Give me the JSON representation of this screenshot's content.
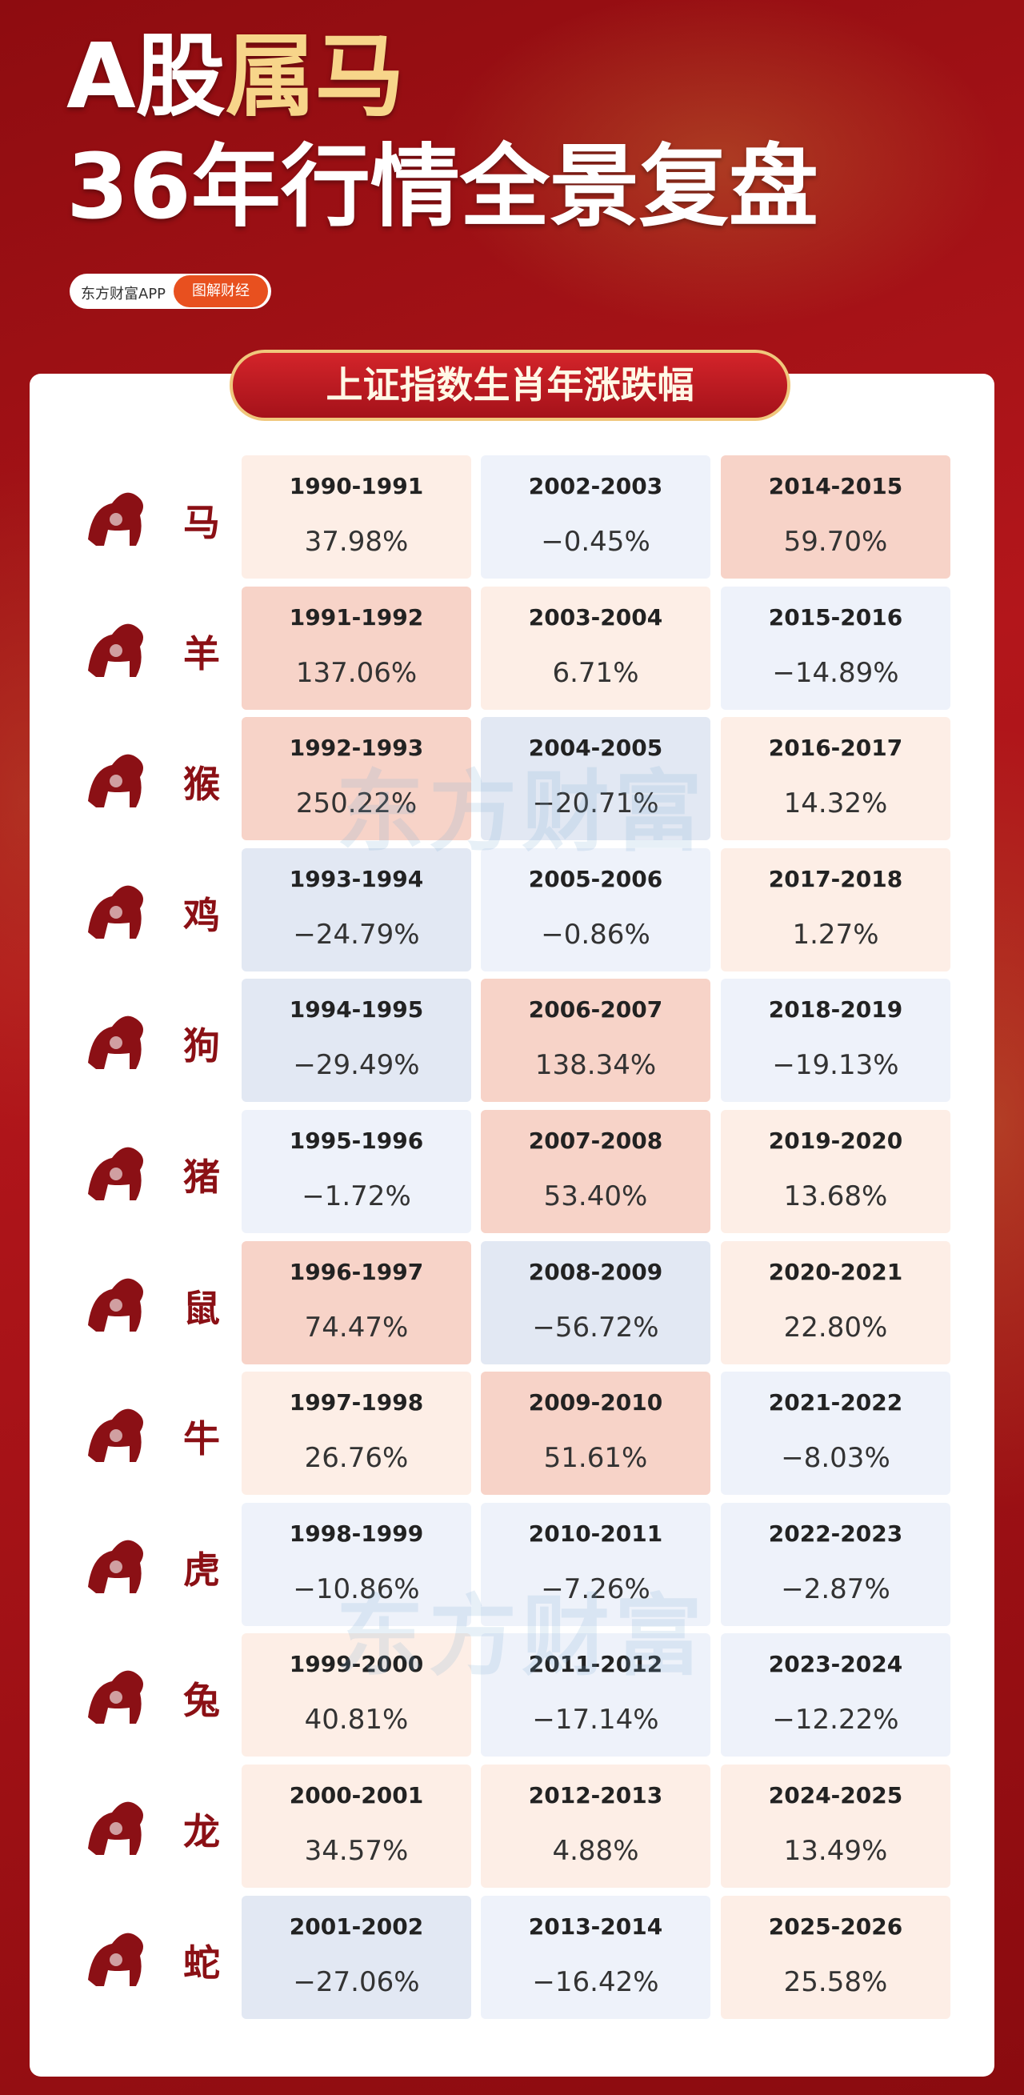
{
  "header": {
    "title_a": "A股",
    "title_b": "属马",
    "title_line2": "36年行情全景复盘",
    "badge_left": "东方财富APP",
    "badge_right": "图解财经"
  },
  "banner": "上证指数生肖年涨跌幅",
  "watermark": "东方财富",
  "table": {
    "rows": [
      {
        "zodiac": "马",
        "cells": [
          {
            "period": "1990-1991",
            "change": "37.98%"
          },
          {
            "period": "2002-2003",
            "change": "−0.45%"
          },
          {
            "period": "2014-2015",
            "change": "59.70%"
          }
        ]
      },
      {
        "zodiac": "羊",
        "cells": [
          {
            "period": "1991-1992",
            "change": "137.06%"
          },
          {
            "period": "2003-2004",
            "change": "6.71%"
          },
          {
            "period": "2015-2016",
            "change": "−14.89%"
          }
        ]
      },
      {
        "zodiac": "猴",
        "cells": [
          {
            "period": "1992-1993",
            "change": "250.22%"
          },
          {
            "period": "2004-2005",
            "change": "−20.71%"
          },
          {
            "period": "2016-2017",
            "change": "14.32%"
          }
        ]
      },
      {
        "zodiac": "鸡",
        "cells": [
          {
            "period": "1993-1994",
            "change": "−24.79%"
          },
          {
            "period": "2005-2006",
            "change": "−0.86%"
          },
          {
            "period": "2017-2018",
            "change": "1.27%"
          }
        ]
      },
      {
        "zodiac": "狗",
        "cells": [
          {
            "period": "1994-1995",
            "change": "−29.49%"
          },
          {
            "period": "2006-2007",
            "change": "138.34%"
          },
          {
            "period": "2018-2019",
            "change": "−19.13%"
          }
        ]
      },
      {
        "zodiac": "猪",
        "cells": [
          {
            "period": "1995-1996",
            "change": "−1.72%"
          },
          {
            "period": "2007-2008",
            "change": "53.40%"
          },
          {
            "period": "2019-2020",
            "change": "13.68%"
          }
        ]
      },
      {
        "zodiac": "鼠",
        "cells": [
          {
            "period": "1996-1997",
            "change": "74.47%"
          },
          {
            "period": "2008-2009",
            "change": "−56.72%"
          },
          {
            "period": "2020-2021",
            "change": "22.80%"
          }
        ]
      },
      {
        "zodiac": "牛",
        "cells": [
          {
            "period": "1997-1998",
            "change": "26.76%"
          },
          {
            "period": "2009-2010",
            "change": "51.61%"
          },
          {
            "period": "2021-2022",
            "change": "−8.03%"
          }
        ]
      },
      {
        "zodiac": "虎",
        "cells": [
          {
            "period": "1998-1999",
            "change": "−10.86%"
          },
          {
            "period": "2010-2011",
            "change": "−7.26%"
          },
          {
            "period": "2022-2023",
            "change": "−2.87%"
          }
        ]
      },
      {
        "zodiac": "兔",
        "cells": [
          {
            "period": "1999-2000",
            "change": "40.81%"
          },
          {
            "period": "2011-2012",
            "change": "−17.14%"
          },
          {
            "period": "2023-2024",
            "change": "−12.22%"
          }
        ]
      },
      {
        "zodiac": "龙",
        "cells": [
          {
            "period": "2000-2001",
            "change": "34.57%"
          },
          {
            "period": "2012-2013",
            "change": "4.88%"
          },
          {
            "period": "2024-2025",
            "change": "13.49%"
          }
        ]
      },
      {
        "zodiac": "蛇",
        "cells": [
          {
            "period": "2001-2002",
            "change": "−27.06%"
          },
          {
            "period": "2013-2014",
            "change": "−16.42%"
          },
          {
            "period": "2025-2026",
            "change": "25.58%"
          }
        ]
      }
    ]
  }
}
